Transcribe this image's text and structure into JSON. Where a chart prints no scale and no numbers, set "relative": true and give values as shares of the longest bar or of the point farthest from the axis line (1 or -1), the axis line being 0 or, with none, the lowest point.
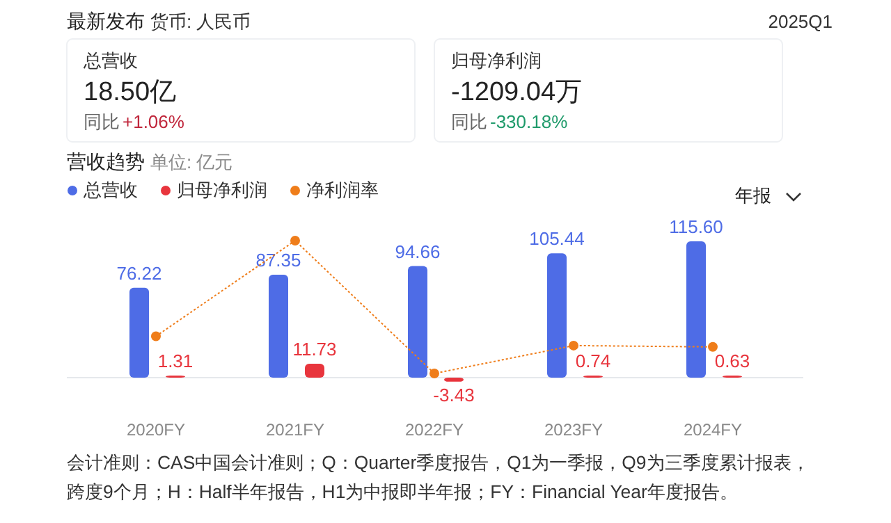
{
  "chart_data": [
    {
      "type": "other",
      "title": "最新发布",
      "subtitle": "货币: 人民币",
      "annotations": [
        "2025Q1",
        "总营收",
        "18.50亿",
        "同比",
        "+1.06%",
        "归母净利润",
        "-1209.04万",
        "同比",
        "-330.18%"
      ]
    },
    {
      "type": "bar",
      "title": "营收趋势",
      "subtitle": "单位: 亿元",
      "categories": [
        "2020FY",
        "2021FY",
        "2022FY",
        "2023FY",
        "2024FY"
      ],
      "legend": "top left",
      "series": [
        {
          "name": "总营收",
          "color": "#4e6ce6",
          "values": [
            76.22,
            87.35,
            94.66,
            105.44,
            115.6
          ],
          "value_labels": [
            "76.22",
            "87.35",
            "94.66",
            "105.44",
            "115.60"
          ]
        },
        {
          "name": "归母净利润",
          "color": "#e8353d",
          "values": [
            1.31,
            11.73,
            -3.43,
            0.74,
            0.63
          ],
          "value_labels": [
            "1.31",
            "11.73",
            "-3.43",
            "0.74",
            "0.63"
          ]
        }
      ],
      "annotations": [
        "年报",
        "会计准则：CAS中国会计准则；Q：Quarter季度报告，Q1为一季报，Q9为三季度累计报表，跨度9个月；H：Half半年报告，H1为中报即半年报；FY：Financial Year年度报告。"
      ]
    },
    {
      "type": "line",
      "relative": true,
      "categories": [
        null,
        null,
        null,
        null,
        null
      ],
      "legend": "top left",
      "marker": "circle",
      "line_style": "dotted",
      "series": [
        {
          "name": "净利润率",
          "color": "#ef7d1a",
          "values": [
            0.28,
            1,
            0,
            0.21,
            0.2
          ]
        }
      ]
    }
  ]
}
